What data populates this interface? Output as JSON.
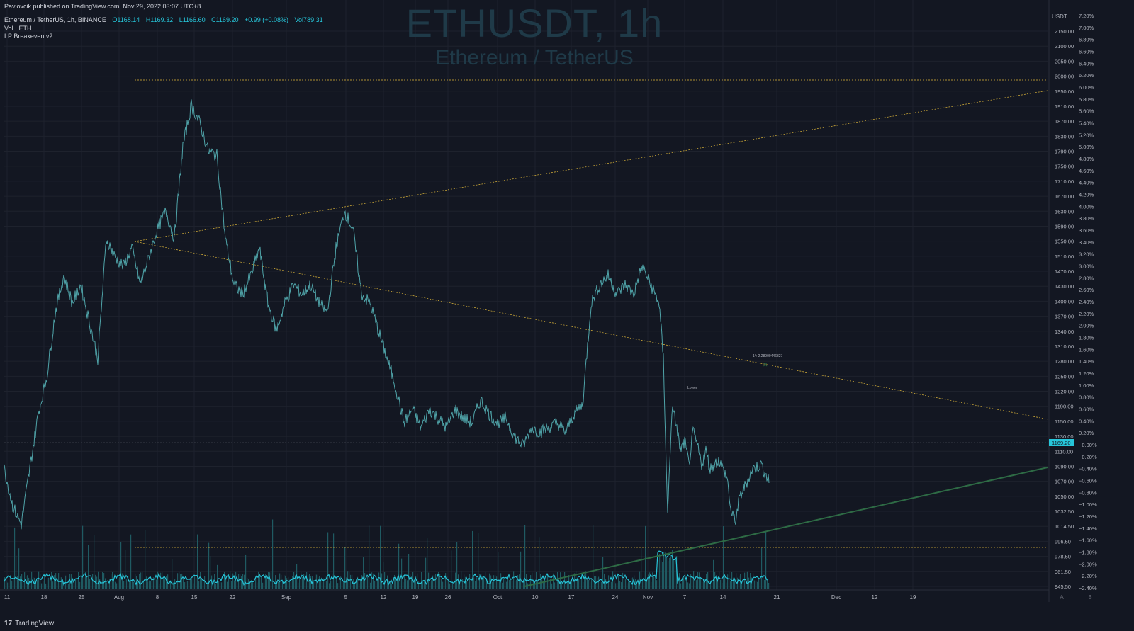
{
  "publisher_line": "Pavlovcik published on TradingView.com, Nov 29, 2022 03:07 UTC+8",
  "legend": {
    "symbol": "Ethereum / TetherUS, 1h, BINANCE",
    "open": "O1168.14",
    "high": "H1169.32",
    "low": "L1166.60",
    "close": "C1169.20",
    "change": "+0.99 (+0.08%)",
    "vol": "Vol789.31",
    "indicator1": "Vol · ETH",
    "indicator2": "LP Breakeven v2"
  },
  "watermark": {
    "line1": "ETHUSDT, 1h",
    "line2": "Ethereum / TetherUS"
  },
  "footer": {
    "brand": "TradingView",
    "mark": "17"
  },
  "colors": {
    "background": "#131722",
    "price_line": "#4fa3a8",
    "volume_bar": "#1f5a62",
    "volume_line": "#26c6da",
    "yellow_line": "#e0b83a",
    "green_line": "#2e6b45",
    "last_price_tag": "#26c6da"
  },
  "chart_data": {
    "type": "line",
    "price_axis_unit": "USDT",
    "price_ticks": [
      "2150.00",
      "2100.00",
      "2050.00",
      "2000.00",
      "1950.00",
      "1910.00",
      "1870.00",
      "1830.00",
      "1790.00",
      "1750.00",
      "1710.00",
      "1670.00",
      "1630.00",
      "1590.00",
      "1550.00",
      "1510.00",
      "1470.00",
      "1430.00",
      "1400.00",
      "1370.00",
      "1340.00",
      "1310.00",
      "1280.00",
      "1250.00",
      "1220.00",
      "1190.00",
      "1150.00",
      "1130.00",
      "1110.00",
      "1090.00",
      "1070.00",
      "1050.00",
      "1032.50",
      "1014.50",
      "996.50",
      "978.50",
      "961.50",
      "945.50"
    ],
    "percent_ticks": [
      "7.20%",
      "7.00%",
      "6.80%",
      "6.60%",
      "6.40%",
      "6.20%",
      "6.00%",
      "5.80%",
      "5.60%",
      "5.40%",
      "5.20%",
      "5.00%",
      "4.80%",
      "4.60%",
      "4.40%",
      "4.20%",
      "4.00%",
      "3.80%",
      "3.60%",
      "3.40%",
      "3.20%",
      "3.00%",
      "2.80%",
      "2.60%",
      "2.40%",
      "2.20%",
      "2.00%",
      "1.80%",
      "1.60%",
      "1.40%",
      "1.20%",
      "1.00%",
      "0.80%",
      "0.60%",
      "0.40%",
      "0.20%",
      "−0.00%",
      "−0.20%",
      "−0.40%",
      "−0.60%",
      "−0.80%",
      "−1.00%",
      "−1.20%",
      "−1.40%",
      "−1.60%",
      "−1.80%",
      "−2.00%",
      "−2.20%",
      "−2.40%"
    ],
    "x_ticks": [
      "11",
      "18",
      "25",
      "Aug",
      "8",
      "15",
      "22",
      "Sep",
      "5",
      "12",
      "19",
      "26",
      "Oct",
      "10",
      "17",
      "24",
      "Nov",
      "7",
      "14",
      "21",
      "Dec",
      "12",
      "19"
    ],
    "last_price": "1169.20",
    "series": [
      {
        "values": [
          [
            0,
            1200
          ],
          [
            12,
            1120
          ],
          [
            24,
            1080
          ],
          [
            36,
            1200
          ],
          [
            48,
            1320
          ],
          [
            60,
            1400
          ],
          [
            72,
            1540
          ],
          [
            84,
            1620
          ],
          [
            96,
            1560
          ],
          [
            108,
            1600
          ],
          [
            120,
            1520
          ],
          [
            132,
            1440
          ],
          [
            144,
            1700
          ],
          [
            156,
            1660
          ],
          [
            168,
            1640
          ],
          [
            180,
            1680
          ],
          [
            192,
            1600
          ],
          [
            204,
            1660
          ],
          [
            216,
            1720
          ],
          [
            228,
            1760
          ],
          [
            240,
            1700
          ],
          [
            252,
            1900
          ],
          [
            264,
            1990
          ],
          [
            276,
            1950
          ],
          [
            288,
            1890
          ],
          [
            300,
            1880
          ],
          [
            312,
            1700
          ],
          [
            324,
            1600
          ],
          [
            336,
            1580
          ],
          [
            348,
            1620
          ],
          [
            360,
            1680
          ],
          [
            372,
            1560
          ],
          [
            384,
            1500
          ],
          [
            396,
            1560
          ],
          [
            408,
            1600
          ],
          [
            420,
            1580
          ],
          [
            432,
            1600
          ],
          [
            444,
            1560
          ],
          [
            456,
            1540
          ],
          [
            468,
            1680
          ],
          [
            480,
            1760
          ],
          [
            492,
            1720
          ],
          [
            504,
            1580
          ],
          [
            516,
            1560
          ],
          [
            528,
            1500
          ],
          [
            540,
            1440
          ],
          [
            552,
            1380
          ],
          [
            564,
            1300
          ],
          [
            576,
            1330
          ],
          [
            588,
            1290
          ],
          [
            600,
            1330
          ],
          [
            612,
            1310
          ],
          [
            624,
            1290
          ],
          [
            636,
            1330
          ],
          [
            648,
            1310
          ],
          [
            660,
            1300
          ],
          [
            672,
            1350
          ],
          [
            684,
            1320
          ],
          [
            696,
            1300
          ],
          [
            708,
            1310
          ],
          [
            720,
            1270
          ],
          [
            732,
            1250
          ],
          [
            744,
            1290
          ],
          [
            756,
            1280
          ],
          [
            768,
            1290
          ],
          [
            780,
            1300
          ],
          [
            792,
            1280
          ],
          [
            804,
            1320
          ],
          [
            816,
            1340
          ],
          [
            828,
            1560
          ],
          [
            840,
            1600
          ],
          [
            852,
            1620
          ],
          [
            864,
            1580
          ],
          [
            876,
            1600
          ],
          [
            888,
            1580
          ],
          [
            900,
            1640
          ],
          [
            912,
            1600
          ],
          [
            924,
            1560
          ],
          [
            930,
            1440
          ],
          [
            936,
            1100
          ],
          [
            942,
            1330
          ],
          [
            948,
            1300
          ],
          [
            954,
            1240
          ],
          [
            960,
            1260
          ],
          [
            966,
            1210
          ],
          [
            972,
            1280
          ],
          [
            978,
            1250
          ],
          [
            984,
            1210
          ],
          [
            990,
            1240
          ],
          [
            996,
            1200
          ],
          [
            1008,
            1220
          ],
          [
            1020,
            1180
          ],
          [
            1026,
            1100
          ],
          [
            1032,
            1090
          ],
          [
            1038,
            1140
          ],
          [
            1044,
            1160
          ],
          [
            1056,
            1200
          ],
          [
            1068,
            1210
          ],
          [
            1080,
            1170
          ]
        ]
      }
    ],
    "annotations": [
      "1°: 2.28909446327",
      "Lower"
    ],
    "grid": true
  }
}
